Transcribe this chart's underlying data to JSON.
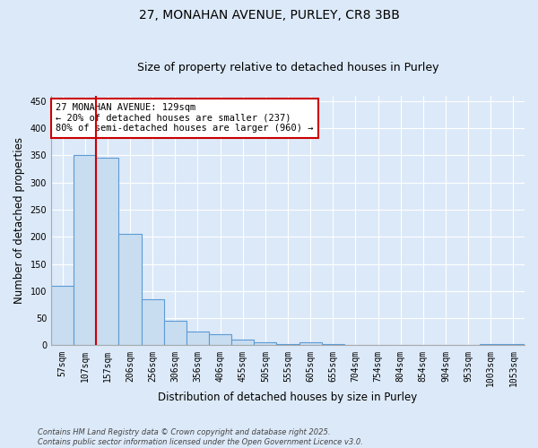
{
  "title_line1": "27, MONAHAN AVENUE, PURLEY, CR8 3BB",
  "title_line2": "Size of property relative to detached houses in Purley",
  "xlabel": "Distribution of detached houses by size in Purley",
  "ylabel": "Number of detached properties",
  "bar_labels": [
    "57sqm",
    "107sqm",
    "157sqm",
    "206sqm",
    "256sqm",
    "306sqm",
    "356sqm",
    "406sqm",
    "455sqm",
    "505sqm",
    "555sqm",
    "605sqm",
    "655sqm",
    "704sqm",
    "754sqm",
    "804sqm",
    "854sqm",
    "904sqm",
    "953sqm",
    "1003sqm",
    "1053sqm"
  ],
  "bar_values": [
    110,
    350,
    345,
    205,
    85,
    46,
    25,
    20,
    10,
    6,
    2,
    6,
    2,
    0,
    0,
    0,
    0,
    0,
    0,
    2,
    2
  ],
  "bar_color": "#c9ddf0",
  "bar_edge_color": "#5b9bd5",
  "red_line_x": 1.5,
  "annotation_text": "27 MONAHAN AVENUE: 129sqm\n← 20% of detached houses are smaller (237)\n80% of semi-detached houses are larger (960) →",
  "annotation_box_color": "white",
  "annotation_box_edge_color": "#cc0000",
  "vline_color": "#cc0000",
  "ylim": [
    0,
    460
  ],
  "yticks": [
    0,
    50,
    100,
    150,
    200,
    250,
    300,
    350,
    400,
    450
  ],
  "background_color": "#dce9f8",
  "grid_color": "white",
  "title_fontsize": 10,
  "subtitle_fontsize": 9,
  "tick_fontsize": 7,
  "label_fontsize": 8.5,
  "footer_line1": "Contains HM Land Registry data © Crown copyright and database right 2025.",
  "footer_line2": "Contains public sector information licensed under the Open Government Licence v3.0."
}
